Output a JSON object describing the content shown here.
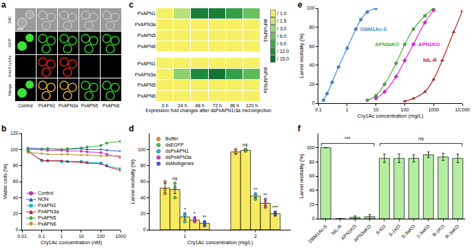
{
  "chart_data": [
    {
      "panel": "a",
      "type": "image_grid",
      "rows": [
        "DIC",
        "GFP",
        "Anti-Cry1Ac",
        "Merge"
      ],
      "columns": [
        "Control",
        "PxAPN1",
        "PxAPN3a",
        "PxAPN5",
        "PxAPN6"
      ]
    },
    {
      "panel": "b",
      "type": "line",
      "x": [
        0.02,
        0.1,
        0.2,
        1,
        2,
        10,
        20,
        100,
        200,
        1000
      ],
      "x_label": "Cry1Ac concentration (nM)",
      "y_label": "Viable cells (%)",
      "log": "x",
      "xlim": [
        0.01,
        1000
      ],
      "xticks": [
        0.01,
        0.1,
        1,
        10,
        100,
        1000
      ],
      "ylim": [
        0,
        120
      ],
      "yticks": [
        0,
        20,
        40,
        60,
        80,
        100,
        120
      ],
      "grid": false,
      "legend": "lower left",
      "series": [
        {
          "name": "Control",
          "color": "#cc33cc",
          "marker": "circle",
          "values": [
            100,
            100,
            99,
            99,
            98,
            98,
            97,
            96,
            94,
            90
          ]
        },
        {
          "name": "NON",
          "color": "#2a55d0",
          "marker": "triangle-up",
          "values": [
            102,
            101,
            101,
            100,
            100,
            101,
            100,
            100,
            99,
            98
          ]
        },
        {
          "name": "PxAPN1",
          "color": "#17b2c8",
          "marker": "square",
          "values": [
            100,
            86,
            86,
            85,
            85,
            85,
            84,
            83,
            80,
            76
          ]
        },
        {
          "name": "PxAPN3a",
          "color": "#c8102e",
          "marker": "triangle-up",
          "values": [
            98,
            87,
            86,
            86,
            85,
            84,
            83,
            82,
            79,
            74
          ]
        },
        {
          "name": "PxAPN5",
          "color": "#3aa83a",
          "marker": "diamond",
          "values": [
            100,
            100,
            101,
            100,
            101,
            102,
            103,
            105,
            108,
            110
          ]
        },
        {
          "name": "PxAPN6",
          "color": "#c08a1a",
          "marker": "triangle-down",
          "values": [
            96,
            95,
            94,
            94,
            94,
            93,
            93,
            92,
            92,
            92
          ]
        }
      ]
    },
    {
      "panel": "c",
      "type": "heatmap",
      "x": [
        "0 h",
        "24 h",
        "48 h",
        "72 h",
        "96 h",
        "120 h"
      ],
      "rows": [
        "PxAPN1",
        "PxAPN3a",
        "PxAPN5",
        "PxAPN6"
      ],
      "x_label": "Expression fold changes after dsPxAPN1/3a microinjection",
      "blocks": [
        {
          "name": "dsPxAPN1",
          "cells": [
            [
              1,
              2,
              13,
              13,
              10,
              6
            ],
            [
              1,
              1,
              1,
              1,
              1,
              1
            ],
            [
              1,
              1,
              1,
              1,
              1,
              1
            ],
            [
              1,
              1,
              1,
              1,
              1,
              1
            ]
          ]
        },
        {
          "name": "dsPxAPN3a",
          "cells": [
            [
              1,
              1,
              1,
              1,
              1,
              1
            ],
            [
              1,
              4,
              12,
              14,
              10,
              7
            ],
            [
              1,
              1,
              1,
              1,
              1,
              1
            ],
            [
              1,
              1,
              1,
              1,
              1,
              1
            ]
          ]
        }
      ],
      "colorbar": {
        "range": [
          1,
          15
        ],
        "ticks": [
          {
            "value": 1,
            "label": "/ 1.0"
          },
          {
            "value": 1.5,
            "label": "/ 1.5"
          },
          {
            "value": 3,
            "label": "/ 3.0"
          },
          {
            "value": 6,
            "label": "/ 6.0"
          },
          {
            "value": 9,
            "label": "/ 9.0"
          },
          {
            "value": 12,
            "label": "/ 12.0"
          },
          {
            "value": 15,
            "label": "/ 15.0"
          }
        ]
      }
    },
    {
      "panel": "d",
      "type": "bar",
      "categories": [
        "1",
        "2"
      ],
      "x_label": "Cry1Ac concentration (mg/L)",
      "y_label": "Larval mortality (%)",
      "ylim": [
        0,
        120
      ],
      "yticks": [
        0,
        20,
        40,
        60,
        80,
        100
      ],
      "grid": false,
      "legend": "upper left",
      "series": [
        {
          "name": "Buffer",
          "color": "#f08c30",
          "values": [
            52,
            97
          ],
          "errors": [
            6,
            2
          ],
          "points": [
            [
              60,
              45,
              50
            ],
            [
              100,
              95,
              96
            ]
          ]
        },
        {
          "name": "dsEGFP",
          "color": "#4cc44c",
          "values": [
            50,
            99
          ],
          "errors": [
            5,
            1
          ],
          "points": [
            [
              58,
              40,
              52
            ],
            [
              100,
              98,
              100
            ]
          ],
          "labels": [
            "ns",
            "ns"
          ]
        },
        {
          "name": "dsPxAPN1",
          "color": "#20c0d8",
          "values": [
            16,
            42
          ],
          "errors": [
            3,
            2
          ],
          "points": [
            [
              20,
              10,
              18
            ],
            [
              45,
              38,
              42
            ]
          ],
          "labels": [
            "*",
            "**"
          ]
        },
        {
          "name": "dsPxAPN3a",
          "color": "#d040d0",
          "values": [
            12,
            33
          ],
          "errors": [
            2,
            3
          ],
          "points": [
            [
              15,
              10,
              12
            ],
            [
              38,
              28,
              33
            ]
          ],
          "labels": [
            "*",
            "**"
          ]
        },
        {
          "name": "dsMultigenes",
          "color": "#3a60d8",
          "values": [
            8,
            20
          ],
          "errors": [
            2,
            1
          ],
          "points": [
            [
              10,
              5,
              8
            ],
            [
              22,
              18,
              20
            ]
          ],
          "labels": [
            "**",
            "***"
          ]
        }
      ]
    },
    {
      "panel": "e",
      "type": "line",
      "x_label": "Cry1Ac concentration (mg/L)",
      "y_label": "Larval mortality (%)",
      "log": "x",
      "xlim": [
        0.1,
        10000
      ],
      "xticks": [
        0.1,
        1,
        10,
        100,
        1000,
        {
          "value": 10000,
          "label": "10,000"
        }
      ],
      "ylim": [
        0,
        100
      ],
      "yticks": [
        0,
        20,
        40,
        60,
        80,
        100
      ],
      "grid": false,
      "series": [
        {
          "name": "DBM1Ac-S",
          "color": "#3b8fe0",
          "marker": "circle",
          "x": [
            0.15,
            0.2,
            0.3,
            0.5,
            1,
            2,
            3,
            5,
            10
          ],
          "values": [
            3,
            10,
            22,
            38,
            58,
            78,
            88,
            96,
            100
          ]
        },
        {
          "name": "APN3aKO",
          "color": "#4caf3a",
          "marker": "circle",
          "x": [
            5,
            10,
            20,
            50,
            100,
            200,
            500,
            1000
          ],
          "values": [
            3,
            8,
            20,
            42,
            62,
            78,
            92,
            100
          ]
        },
        {
          "name": "APN1KO",
          "color": "#e020e0",
          "marker": "diamond",
          "x": [
            10,
            20,
            50,
            100,
            200,
            500,
            1000
          ],
          "values": [
            5,
            12,
            28,
            45,
            62,
            85,
            98
          ]
        },
        {
          "name": "NIL-R",
          "color": "#c0201a",
          "marker": "triangle-up",
          "x": [
            100,
            200,
            500,
            1000,
            2000,
            5000,
            10000
          ],
          "values": [
            2,
            5,
            12,
            25,
            45,
            75,
            97
          ]
        }
      ]
    },
    {
      "panel": "f",
      "type": "bar",
      "categories": [
        "DBM1Ac-S",
        "NIL-R",
        "APN1KO",
        "APN3aKO",
        "S-KO",
        "S-1KO",
        "S-3aKO",
        "1-3aKO",
        "R-1KO",
        "R-3aKO"
      ],
      "y_label": "Larval mortality (%)",
      "ylim": [
        0,
        120
      ],
      "yticks": [
        0,
        20,
        40,
        60,
        80,
        100
      ],
      "grid": false,
      "color": "#b5eda0",
      "values": [
        100,
        0,
        2,
        3,
        85,
        85,
        85,
        90,
        87,
        85
      ],
      "errors": [
        0,
        0,
        2,
        3,
        6,
        6,
        5,
        4,
        5,
        6
      ],
      "brackets": [
        {
          "text": "***",
          "from": "DBM1Ac-S",
          "to": "APN3aKO"
        },
        {
          "text": "ns",
          "from": "S-KO",
          "to": "R-3aKO"
        }
      ]
    }
  ]
}
